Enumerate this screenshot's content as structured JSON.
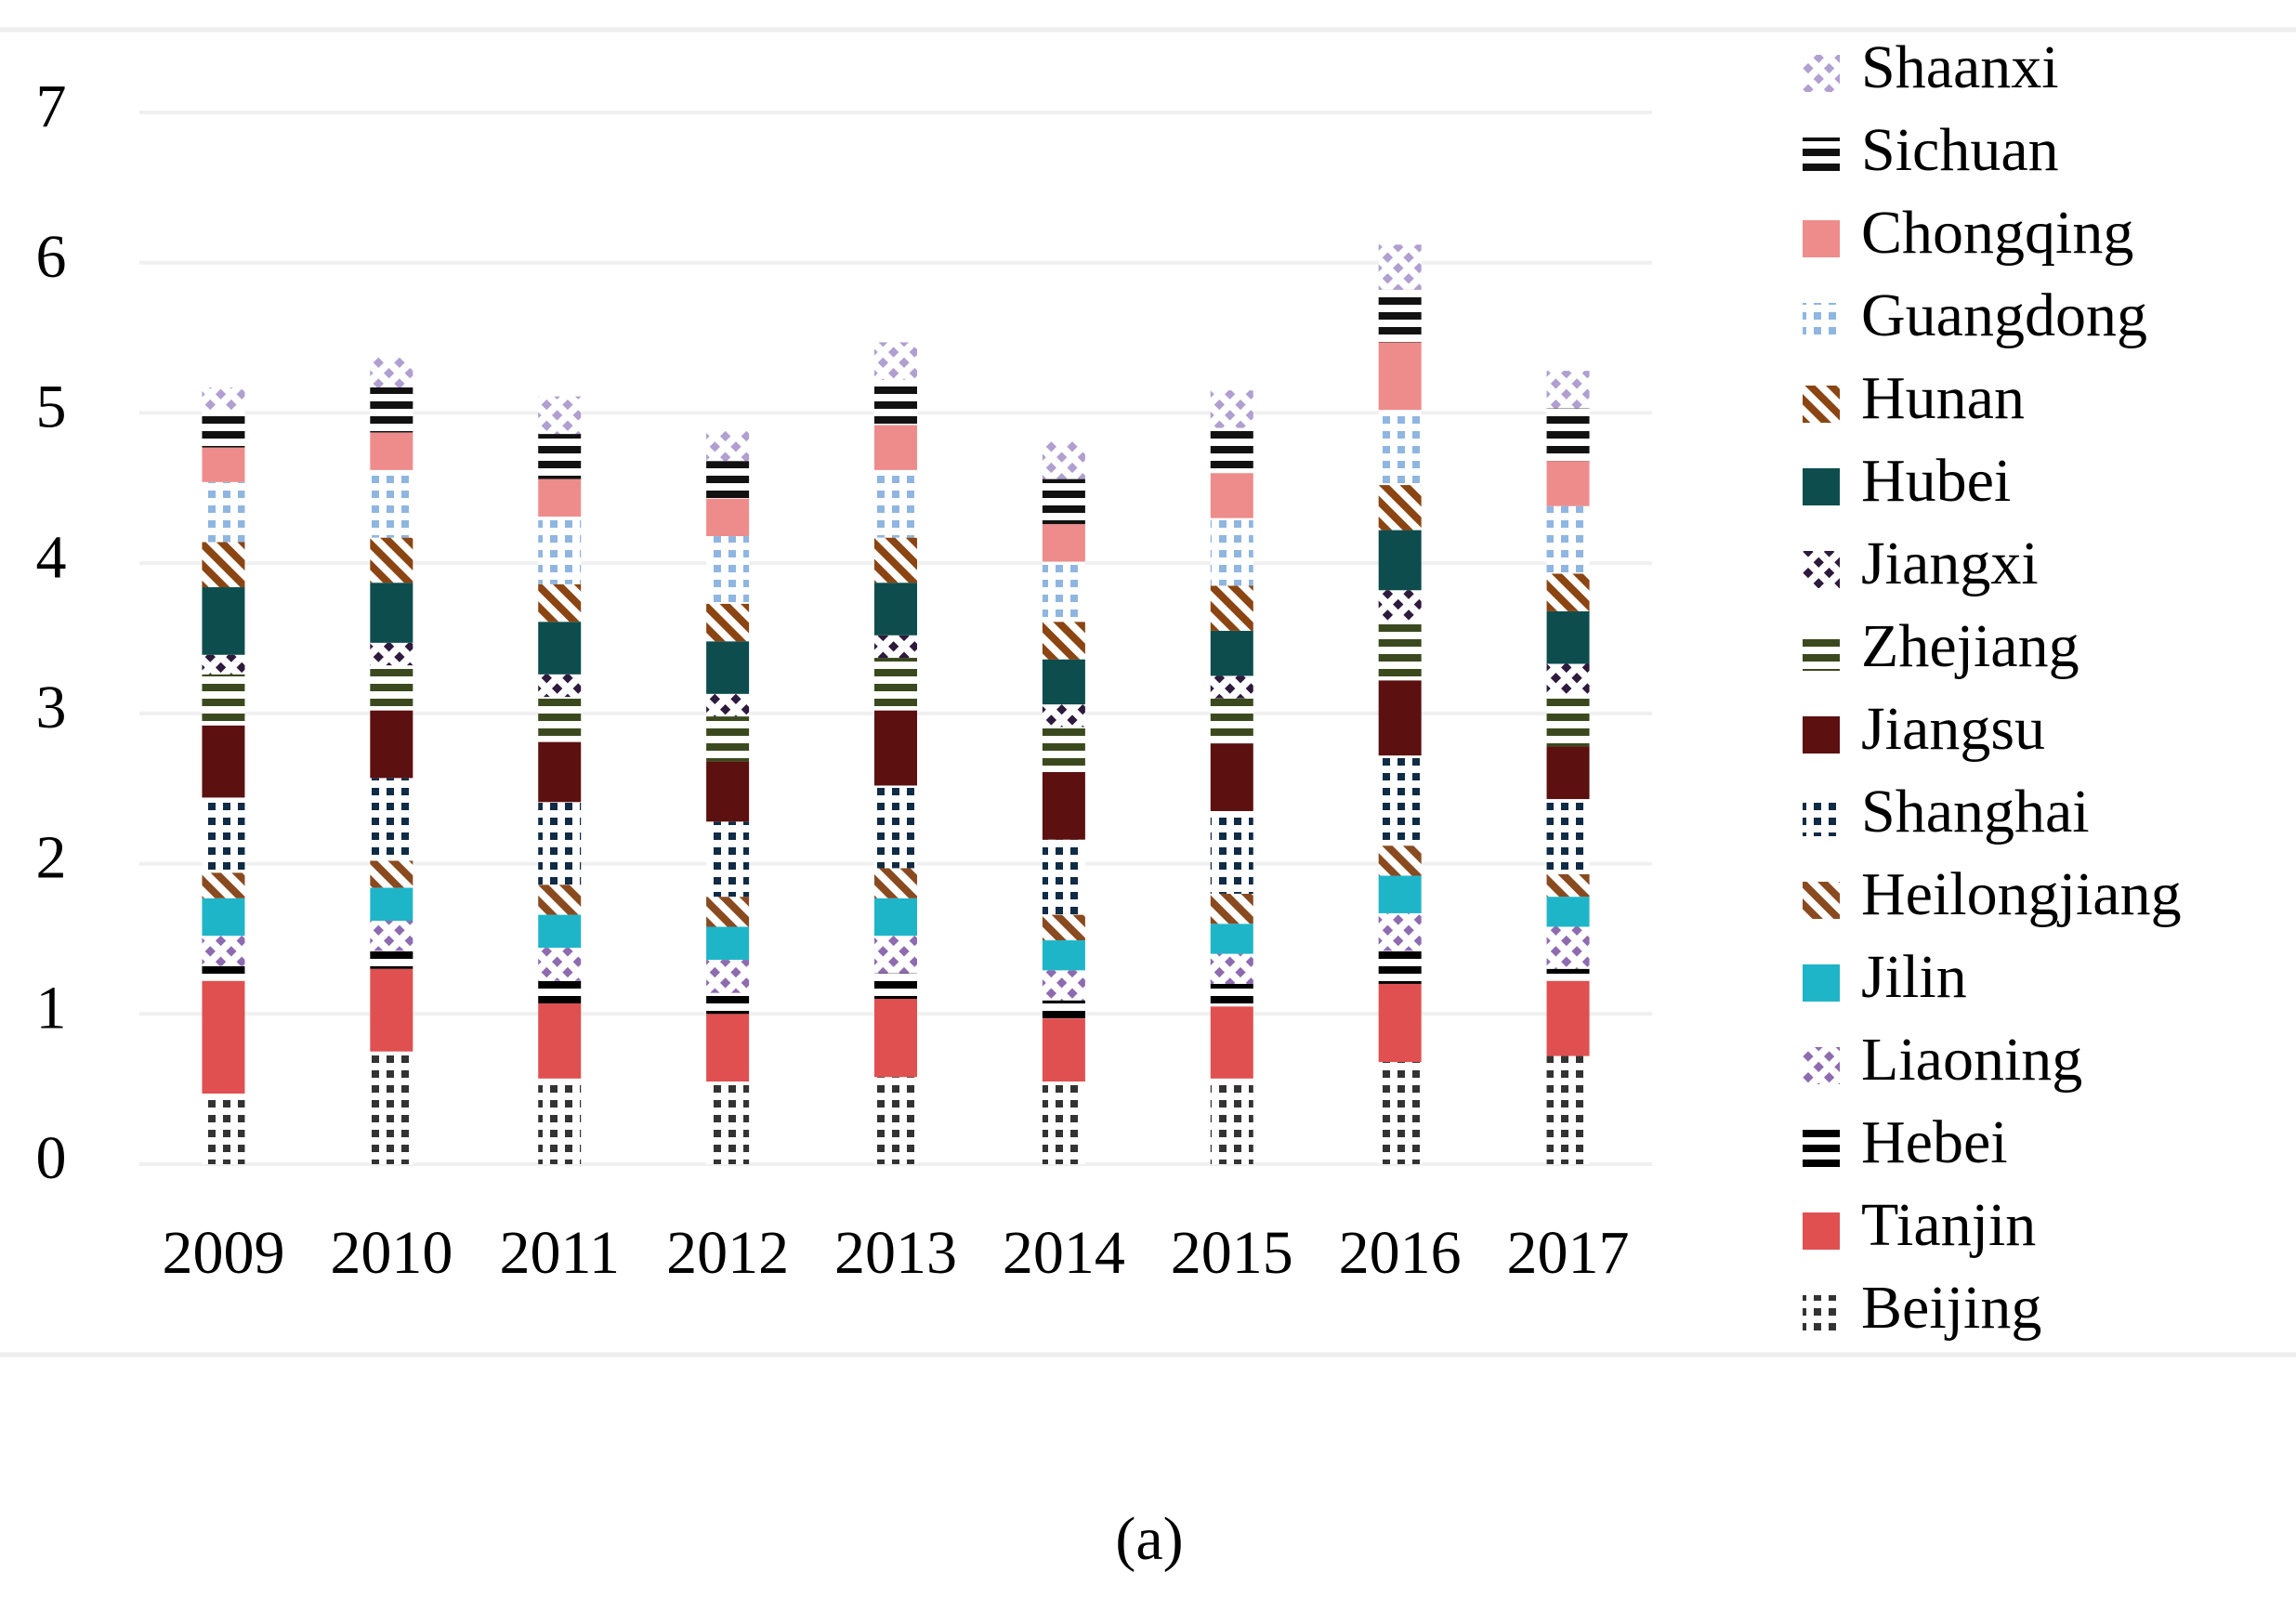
{
  "chart_data": {
    "type": "stacked_bar",
    "caption": "(a)",
    "categories": [
      "2009",
      "2010",
      "2011",
      "2012",
      "2013",
      "2014",
      "2015",
      "2016",
      "2017"
    ],
    "ylim": [
      0,
      7
    ],
    "yticks": [
      0,
      1,
      2,
      3,
      4,
      5,
      6,
      7
    ],
    "grid": true,
    "series": [
      {
        "name": "Beijing",
        "color": "#333333",
        "values": [
          0.47,
          0.75,
          0.57,
          0.55,
          0.58,
          0.55,
          0.57,
          0.68,
          0.72
        ]
      },
      {
        "name": "Tianjin",
        "color": "#e05050",
        "values": [
          0.75,
          0.55,
          0.5,
          0.45,
          0.52,
          0.42,
          0.48,
          0.52,
          0.5
        ]
      },
      {
        "name": "Hebei",
        "color": "#000000",
        "values": [
          0.1,
          0.12,
          0.15,
          0.14,
          0.17,
          0.12,
          0.15,
          0.22,
          0.08
        ]
      },
      {
        "name": "Liaoning",
        "color": "#8e6bb0",
        "values": [
          0.2,
          0.2,
          0.22,
          0.22,
          0.25,
          0.2,
          0.2,
          0.25,
          0.28
        ]
      },
      {
        "name": "Jilin",
        "color": "#1fb5c9",
        "values": [
          0.25,
          0.22,
          0.22,
          0.22,
          0.25,
          0.2,
          0.2,
          0.25,
          0.2
        ]
      },
      {
        "name": "Heilongjiang",
        "color": "#8a4a20",
        "values": [
          0.17,
          0.18,
          0.2,
          0.2,
          0.2,
          0.17,
          0.2,
          0.2,
          0.15
        ]
      },
      {
        "name": "Shanghai",
        "color": "#0f2b45",
        "values": [
          0.5,
          0.55,
          0.55,
          0.5,
          0.55,
          0.5,
          0.55,
          0.6,
          0.5
        ]
      },
      {
        "name": "Jiangsu",
        "color": "#5c1010",
        "values": [
          0.48,
          0.45,
          0.4,
          0.4,
          0.5,
          0.45,
          0.45,
          0.5,
          0.35
        ]
      },
      {
        "name": "Zhejiang",
        "color": "#3b4a1e",
        "values": [
          0.34,
          0.3,
          0.3,
          0.3,
          0.35,
          0.3,
          0.3,
          0.4,
          0.35
        ]
      },
      {
        "name": "Jiangxi",
        "color": "#2e1a3d",
        "values": [
          0.13,
          0.15,
          0.15,
          0.15,
          0.15,
          0.15,
          0.15,
          0.2,
          0.2
        ]
      },
      {
        "name": "Hubei",
        "color": "#0e4d4d",
        "values": [
          0.45,
          0.4,
          0.35,
          0.35,
          0.35,
          0.3,
          0.3,
          0.4,
          0.35
        ]
      },
      {
        "name": "Hunan",
        "color": "#8b4513",
        "values": [
          0.3,
          0.3,
          0.25,
          0.25,
          0.3,
          0.25,
          0.3,
          0.3,
          0.25
        ]
      },
      {
        "name": "Guangdong",
        "color": "#8fb6e0",
        "values": [
          0.4,
          0.45,
          0.45,
          0.45,
          0.45,
          0.4,
          0.45,
          0.5,
          0.45
        ]
      },
      {
        "name": "Chongqing",
        "color": "#ee8c8c",
        "values": [
          0.23,
          0.25,
          0.25,
          0.25,
          0.3,
          0.25,
          0.3,
          0.45,
          0.3
        ]
      },
      {
        "name": "Sichuan",
        "color": "#111111",
        "values": [
          0.25,
          0.3,
          0.3,
          0.25,
          0.3,
          0.3,
          0.3,
          0.35,
          0.35
        ]
      },
      {
        "name": "Shaanxi",
        "color": "#b09fd0",
        "values": [
          0.15,
          0.2,
          0.25,
          0.2,
          0.25,
          0.25,
          0.25,
          0.3,
          0.25
        ]
      }
    ]
  }
}
